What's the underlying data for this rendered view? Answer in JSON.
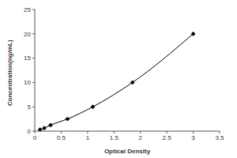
{
  "chart_data": {
    "type": "line",
    "x_label": "Optical Density",
    "y_label": "Concentration(ng/mL)",
    "x": [
      0.1,
      0.18,
      0.3,
      0.62,
      1.1,
      1.85,
      3.0
    ],
    "values": [
      0.31,
      0.625,
      1.25,
      2.5,
      5,
      10,
      20
    ],
    "color": "#000000",
    "marker": "diamond",
    "line_style": "solid",
    "xlim": [
      0,
      3.5
    ],
    "xticks": [
      0,
      0.5,
      1,
      1.5,
      2,
      2.5,
      3,
      3.5
    ],
    "ylim": [
      0,
      25
    ],
    "yticks": [
      0,
      5,
      10,
      15,
      20,
      25
    ],
    "grid": false
  }
}
